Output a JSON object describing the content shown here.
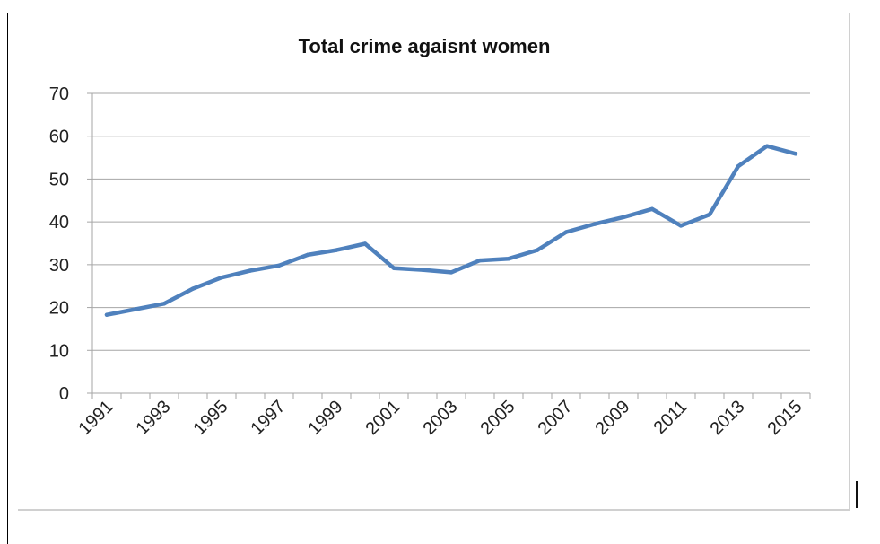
{
  "chart_data": {
    "type": "line",
    "title": "Total crime agaisnt women",
    "xlabel": "",
    "ylabel": "",
    "x": [
      1991,
      1992,
      1993,
      1994,
      1995,
      1996,
      1997,
      1998,
      1999,
      2000,
      2001,
      2002,
      2003,
      2004,
      2005,
      2006,
      2007,
      2008,
      2009,
      2010,
      2011,
      2012,
      2013,
      2014,
      2015
    ],
    "x_tick_labels": [
      "1991",
      "1993",
      "1995",
      "1997",
      "1999",
      "2001",
      "2003",
      "2005",
      "2007",
      "2009",
      "2011",
      "2013",
      "2015"
    ],
    "ylim": [
      0,
      70
    ],
    "y_ticks": [
      0,
      10,
      20,
      30,
      40,
      50,
      60,
      70
    ],
    "series": [
      {
        "values": [
          18.3,
          19.6,
          20.9,
          24.4,
          27.0,
          28.6,
          29.8,
          32.3,
          33.4,
          34.9,
          29.2,
          28.8,
          28.2,
          31.0,
          31.4,
          33.4,
          37.6,
          39.5,
          41.1,
          43.0,
          39.1,
          41.7,
          53.0,
          57.7,
          55.9
        ],
        "color": "#4f81bd"
      }
    ],
    "grid": true,
    "legend": "none"
  }
}
